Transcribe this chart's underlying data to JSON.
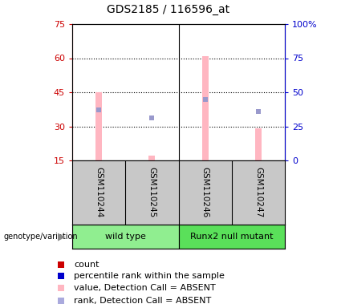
{
  "title": "GDS2185 / 116596_at",
  "samples": [
    "GSM110244",
    "GSM110245",
    "GSM110246",
    "GSM110247"
  ],
  "groups": [
    {
      "label": "wild type",
      "color": "#90EE90",
      "start": 0,
      "end": 2
    },
    {
      "label": "Runx2 null mutant",
      "color": "#5AE05A",
      "start": 2,
      "end": 4
    }
  ],
  "pink_bar_values": [
    45,
    17,
    61,
    29
  ],
  "blue_square_ranks": [
    37,
    31,
    45,
    36
  ],
  "ylim_left": [
    15,
    75
  ],
  "ylim_right": [
    0,
    100
  ],
  "yticks_left": [
    15,
    30,
    45,
    60,
    75
  ],
  "yticks_right": [
    0,
    25,
    50,
    75,
    100
  ],
  "yticks_right_labels": [
    "0",
    "25",
    "50",
    "75",
    "100%"
  ],
  "pink_bar_color": "#FFB6C1",
  "blue_square_color": "#9999CC",
  "bg_plot": "white",
  "bg_sample_row": "#C8C8C8",
  "legend_items": [
    {
      "color": "#CC0000",
      "label": "count"
    },
    {
      "color": "#0000CC",
      "label": "percentile rank within the sample"
    },
    {
      "color": "#FFB6C1",
      "label": "value, Detection Call = ABSENT"
    },
    {
      "color": "#AAAADD",
      "label": "rank, Detection Call = ABSENT"
    }
  ],
  "genotype_label": "genotype/variation",
  "left_axis_color": "#CC0000",
  "right_axis_color": "#0000CC",
  "title_fontsize": 10,
  "tick_fontsize": 8,
  "label_fontsize": 8,
  "sample_fontsize": 7.5,
  "legend_fontsize": 8
}
